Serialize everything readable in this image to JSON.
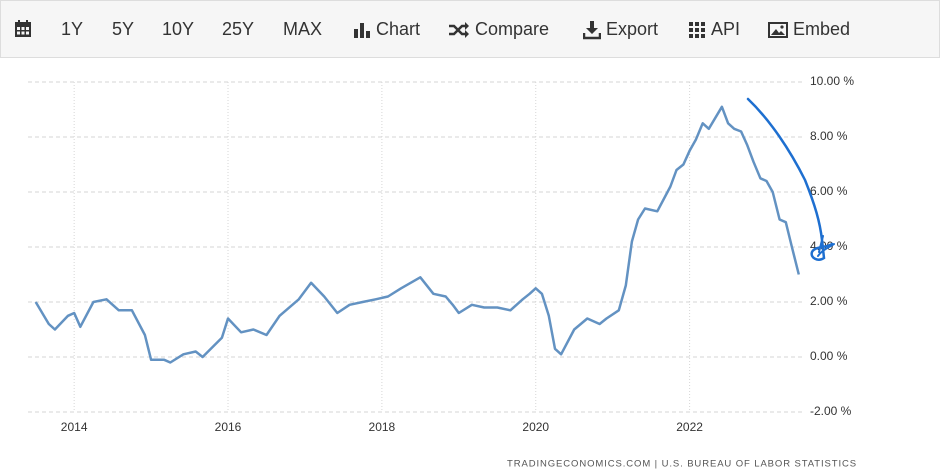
{
  "toolbar": {
    "ranges": [
      "1Y",
      "5Y",
      "10Y",
      "25Y",
      "MAX"
    ],
    "buttons": [
      "Chart",
      "Compare",
      "Export",
      "API",
      "Embed"
    ]
  },
  "chart_data": {
    "type": "line",
    "color": "#6392c2",
    "x": [
      2013.5,
      2013.67,
      2013.75,
      2013.92,
      2014.0,
      2014.08,
      2014.25,
      2014.42,
      2014.58,
      2014.75,
      2014.92,
      2015.0,
      2015.17,
      2015.25,
      2015.42,
      2015.58,
      2015.67,
      2015.92,
      2016.0,
      2016.17,
      2016.33,
      2016.5,
      2016.67,
      2016.92,
      2017.08,
      2017.25,
      2017.42,
      2017.58,
      2017.75,
      2017.92,
      2018.08,
      2018.25,
      2018.5,
      2018.67,
      2018.83,
      2018.92,
      2019.0,
      2019.17,
      2019.33,
      2019.5,
      2019.67,
      2019.83,
      2019.92,
      2020.0,
      2020.08,
      2020.17,
      2020.25,
      2020.33,
      2020.5,
      2020.67,
      2020.83,
      2020.92,
      2021.08,
      2021.17,
      2021.25,
      2021.33,
      2021.42,
      2021.58,
      2021.75,
      2021.83,
      2021.92,
      2022.0,
      2022.08,
      2022.17,
      2022.25,
      2022.42,
      2022.5,
      2022.58,
      2022.67,
      2022.75,
      2022.83,
      2022.92,
      2023.0,
      2023.08,
      2023.17,
      2023.25,
      2023.33,
      2023.42
    ],
    "values": [
      2.0,
      1.2,
      1.0,
      1.5,
      1.6,
      1.1,
      2.0,
      2.1,
      1.7,
      1.7,
      0.8,
      -0.1,
      -0.1,
      -0.2,
      0.1,
      0.2,
      0.0,
      0.7,
      1.4,
      0.9,
      1.0,
      0.8,
      1.5,
      2.1,
      2.7,
      2.2,
      1.6,
      1.9,
      2.0,
      2.1,
      2.2,
      2.5,
      2.9,
      2.3,
      2.2,
      1.9,
      1.6,
      1.9,
      1.8,
      1.8,
      1.7,
      2.1,
      2.3,
      2.5,
      2.3,
      1.5,
      0.3,
      0.1,
      1.0,
      1.4,
      1.2,
      1.4,
      1.7,
      2.6,
      4.2,
      5.0,
      5.4,
      5.3,
      6.2,
      6.8,
      7.0,
      7.5,
      7.9,
      8.5,
      8.3,
      9.1,
      8.5,
      8.3,
      8.2,
      7.7,
      7.1,
      6.5,
      6.4,
      6.0,
      5.0,
      4.9,
      4.0,
      3.0
    ],
    "xlim": [
      2013.4,
      2023.5
    ],
    "xticks": [
      2014,
      2016,
      2018,
      2020,
      2022
    ],
    "ylim": [
      -2,
      10
    ],
    "yticks": [
      {
        "value": -2,
        "label": "-2.00 %"
      },
      {
        "value": 0,
        "label": "0.00 %"
      },
      {
        "value": 2,
        "label": "2.00 %"
      },
      {
        "value": 4,
        "label": "4.00 %"
      },
      {
        "value": 6,
        "label": "6.00 %"
      },
      {
        "value": 8,
        "label": "8.00 %"
      },
      {
        "value": 10,
        "label": "10.00 %"
      }
    ],
    "grid": true,
    "source": "TRADINGECONOMICS.COM | U.S. BUREAU OF LABOR STATISTICS"
  }
}
